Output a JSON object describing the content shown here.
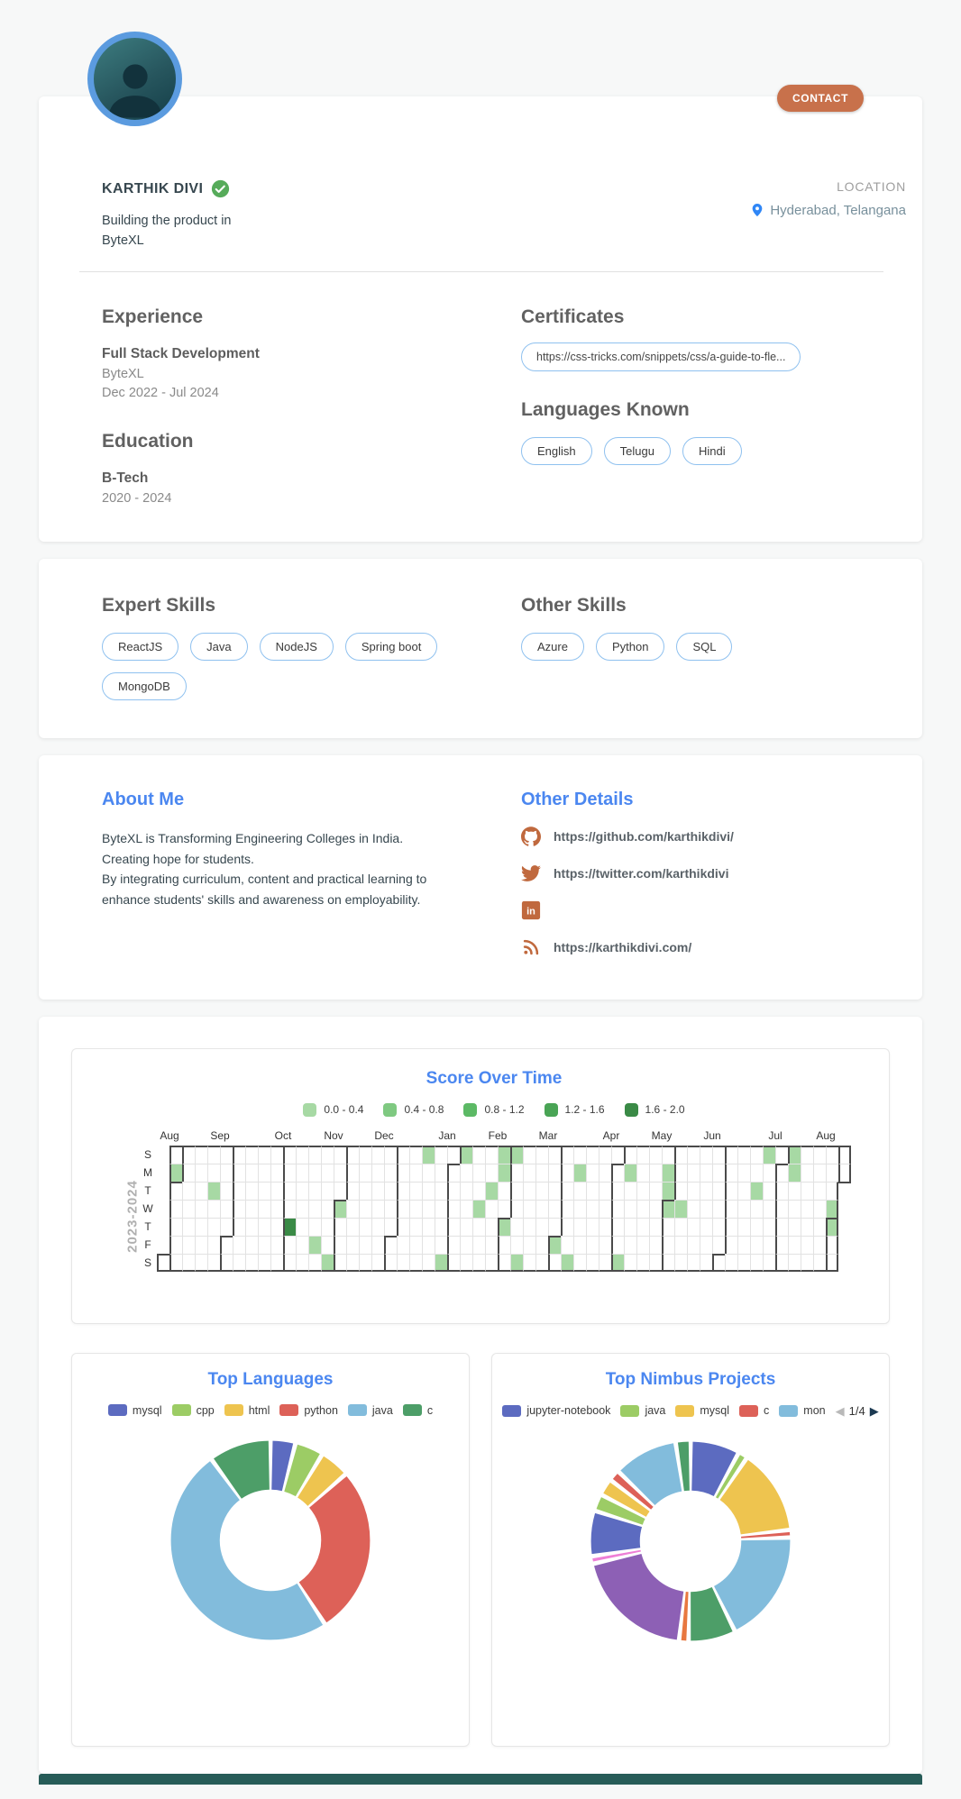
{
  "page": {
    "background": "#f7f8f8",
    "footer_color": "#275c58"
  },
  "header": {
    "name": "KARTHIK DIVI",
    "verified_icon_color": "#56ab5a",
    "tagline_line1": "Building the product in",
    "tagline_line2": "ByteXL",
    "contact_label": "CONTACT",
    "contact_color": "#c8714b",
    "location_label": "LOCATION",
    "location_value": "Hyderabad, Telangana",
    "pin_color": "#2f86f6"
  },
  "profile": {
    "experience_title": "Experience",
    "experience_role": "Full Stack Development",
    "experience_company": "ByteXL",
    "experience_period": "Dec 2022 - Jul 2024",
    "education_title": "Education",
    "education_degree": "B-Tech",
    "education_period": "2020 - 2024",
    "certificates_title": "Certificates",
    "certificate_link": "https://css-tricks.com/snippets/css/a-guide-to-fle...",
    "languages_title": "Languages Known",
    "languages": [
      "English",
      "Telugu",
      "Hindi"
    ]
  },
  "skills": {
    "expert_title": "Expert Skills",
    "expert": [
      "ReactJS",
      "Java",
      "NodeJS",
      "Spring boot",
      "MongoDB"
    ],
    "other_title": "Other Skills",
    "other": [
      "Azure",
      "Python",
      "SQL"
    ]
  },
  "about": {
    "title": "About Me",
    "lines": [
      "ByteXL is Transforming Engineering Colleges in India.",
      "Creating hope for students.",
      "By integrating curriculum, content and practical learning to enhance students' skills and awareness on employability."
    ],
    "details_title": "Other Details",
    "icon_color": "#c0693e",
    "links": [
      {
        "icon": "github-icon",
        "text": "https://github.com/karthikdivi/"
      },
      {
        "icon": "twitter-icon",
        "text": "https://twitter.com/karthikdivi"
      },
      {
        "icon": "linkedin-icon",
        "text": ""
      },
      {
        "icon": "rss-icon",
        "text": "https://karthikdivi.com/"
      }
    ]
  },
  "chart_data": [
    {
      "type": "heatmap",
      "title": "Score Over Time",
      "title_color": "#4b87f0",
      "year_label": "2023-2024",
      "day_labels": [
        "S",
        "M",
        "T",
        "W",
        "T",
        "F",
        "S"
      ],
      "legend": [
        {
          "label": "0.0 - 0.4",
          "color": "#a7d9a4"
        },
        {
          "label": "0.4 - 0.8",
          "color": "#7fc981"
        },
        {
          "label": "0.8 - 1.2",
          "color": "#5cb965"
        },
        {
          "label": "1.2 - 1.6",
          "color": "#49a455"
        },
        {
          "label": "1.6 - 2.0",
          "color": "#3a8a46"
        }
      ],
      "grid": {
        "num_cols": 55,
        "num_rows": 7,
        "first_col_visible_rows": [
          6
        ],
        "last_col_visible_rows": [
          0,
          1
        ],
        "line_color": "#e2e2e2",
        "boundary_color": "#4a4a4a"
      },
      "months": [
        {
          "label": "Aug",
          "col": 1,
          "row": 2
        },
        {
          "label": "Sep",
          "col": 5,
          "row": 5
        },
        {
          "label": "Oct",
          "col": 10,
          "row": 0
        },
        {
          "label": "Nov",
          "col": 14,
          "row": 3
        },
        {
          "label": "Dec",
          "col": 18,
          "row": 5
        },
        {
          "label": "Jan",
          "col": 23,
          "row": 1
        },
        {
          "label": "Feb",
          "col": 27,
          "row": 4
        },
        {
          "label": "Mar",
          "col": 31,
          "row": 5
        },
        {
          "label": "Apr",
          "col": 36,
          "row": 1
        },
        {
          "label": "May",
          "col": 40,
          "row": 3
        },
        {
          "label": "Jun",
          "col": 44,
          "row": 6
        },
        {
          "label": "Jul",
          "col": 49,
          "row": 1
        },
        {
          "label": "Aug",
          "col": 53,
          "row": 4
        }
      ],
      "cells": [
        [
          1,
          1,
          0
        ],
        [
          4,
          2,
          0
        ],
        [
          10,
          4,
          4
        ],
        [
          12,
          5,
          0
        ],
        [
          13,
          6,
          0
        ],
        [
          14,
          3,
          0
        ],
        [
          21,
          0,
          0
        ],
        [
          22,
          6,
          0
        ],
        [
          24,
          0,
          0
        ],
        [
          25,
          3,
          0
        ],
        [
          26,
          2,
          0
        ],
        [
          27,
          0,
          0
        ],
        [
          27,
          1,
          0
        ],
        [
          27,
          4,
          0
        ],
        [
          28,
          0,
          0
        ],
        [
          28,
          6,
          0
        ],
        [
          31,
          5,
          0
        ],
        [
          32,
          6,
          0
        ],
        [
          33,
          1,
          0
        ],
        [
          36,
          6,
          0
        ],
        [
          37,
          1,
          0
        ],
        [
          40,
          1,
          0
        ],
        [
          40,
          2,
          0
        ],
        [
          40,
          3,
          0
        ],
        [
          41,
          3,
          0
        ],
        [
          47,
          2,
          0
        ],
        [
          48,
          0,
          0
        ],
        [
          50,
          0,
          0
        ],
        [
          50,
          1,
          0
        ],
        [
          53,
          3,
          0
        ],
        [
          53,
          4,
          0
        ]
      ]
    },
    {
      "type": "pie",
      "title": "Top Languages",
      "title_color": "#4b87f0",
      "legend_position": "top",
      "value_unit": "degrees-of-arc",
      "slices": [
        {
          "name": "mysql",
          "color": "#5c6bc0",
          "value": 14
        },
        {
          "name": "cpp",
          "color": "#9ccc65",
          "value": 16
        },
        {
          "name": "html",
          "color": "#eec44f",
          "value": 17
        },
        {
          "name": "python",
          "color": "#dd6158",
          "value": 95
        },
        {
          "name": "java",
          "color": "#82bcdc",
          "value": 171
        },
        {
          "name": "c",
          "color": "#4d9e68",
          "value": 35
        }
      ]
    },
    {
      "type": "pie",
      "title": "Top Nimbus Projects",
      "title_color": "#4b87f0",
      "legend_position": "top",
      "value_unit": "degrees-of-arc",
      "legend": [
        {
          "label": "jupyter-notebook",
          "color": "#5c6bc0"
        },
        {
          "label": "java",
          "color": "#9ccc65"
        },
        {
          "label": "mysql",
          "color": "#eec44f"
        },
        {
          "label": "c",
          "color": "#dd6158"
        },
        {
          "label": "mon",
          "color": "#82bcdc"
        }
      ],
      "pagination": {
        "current": "1/4",
        "prev_icon": "left-arrow",
        "next_icon": "right-arrow"
      },
      "slices": [
        {
          "color": "#5c6bc0",
          "value": 26
        },
        {
          "color": "#9ccc65",
          "value": 5
        },
        {
          "color": "#eec44f",
          "value": 45
        },
        {
          "color": "#dd6158",
          "value": 4
        },
        {
          "color": "#82bcdc",
          "value": 60
        },
        {
          "color": "#4d9e68",
          "value": 25
        },
        {
          "color": "#e87840",
          "value": 5
        },
        {
          "color": "#8d60b5",
          "value": 64
        },
        {
          "color": "#ee7fd6",
          "value": 4
        },
        {
          "color": "#5c6bc0",
          "value": 24
        },
        {
          "color": "#9ccc65",
          "value": 9
        },
        {
          "color": "#eec44f",
          "value": 9
        },
        {
          "color": "#dd6158",
          "value": 6
        },
        {
          "color": "#82bcdc",
          "value": 34
        },
        {
          "color": "#4d9e68",
          "value": 8
        }
      ]
    }
  ]
}
